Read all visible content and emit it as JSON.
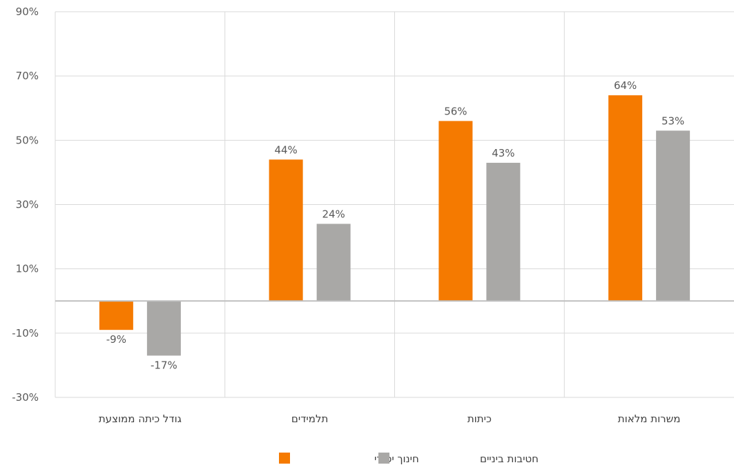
{
  "chart_data": {
    "type": "bar",
    "categories": [
      "גודל כיתה ממוצעת",
      "תלמידים",
      "כיתות",
      "משרות מלאות"
    ],
    "series": [
      {
        "name": "חינוך יסודי",
        "color": "#F57A00",
        "values": [
          -9,
          44,
          56,
          64
        ],
        "labels": [
          "-9%",
          "44%",
          "56%",
          "64%"
        ]
      },
      {
        "name": "חטיבות ביניים",
        "color": "#A9A8A6",
        "values": [
          -17,
          24,
          43,
          53
        ],
        "labels": [
          "-17%",
          "24%",
          "43%",
          "53%"
        ]
      }
    ],
    "ylim": [
      -30,
      90
    ],
    "yticks": [
      -30,
      -10,
      10,
      30,
      50,
      70,
      90
    ],
    "ytick_labels": [
      "-30%",
      "-10%",
      "10%",
      "30%",
      "50%",
      "70%",
      "90%"
    ],
    "grid": true,
    "legend_position": "bottom"
  }
}
